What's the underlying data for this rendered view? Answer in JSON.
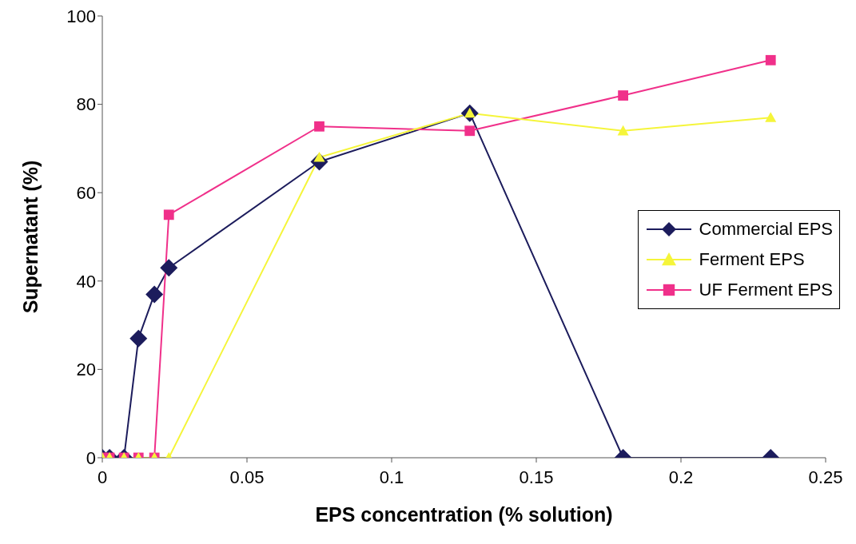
{
  "chart_data": {
    "type": "line",
    "xlabel": "EPS concentration (% solution)",
    "ylabel": "Supernatant (%)",
    "x": [
      0,
      0.0025,
      0.0075,
      0.0125,
      0.018,
      0.023,
      0.075,
      0.127,
      0.18,
      0.231
    ],
    "series": [
      {
        "name": "Commercial EPS",
        "color": "#1c1c5c",
        "marker": "diamond",
        "values": [
          0,
          0,
          0,
          27,
          37,
          43,
          67,
          78,
          0,
          0
        ]
      },
      {
        "name": "Ferment EPS",
        "color": "#f5f53a",
        "marker": "triangle",
        "values": [
          0,
          0,
          0,
          0,
          0,
          0,
          68,
          78,
          74,
          77
        ]
      },
      {
        "name": "UF Ferment EPS",
        "color": "#f0308a",
        "marker": "square",
        "values": [
          0,
          0,
          0,
          0,
          0,
          55,
          75,
          74,
          82,
          90
        ]
      }
    ],
    "xlim": [
      0,
      0.25
    ],
    "xticks": [
      0,
      0.05,
      0.1,
      0.15,
      0.2,
      0.25
    ],
    "ylim": [
      0,
      100
    ],
    "yticks": [
      0,
      20,
      40,
      60,
      80,
      100
    ],
    "grid": false,
    "legend": "right",
    "line_style": "solid"
  }
}
